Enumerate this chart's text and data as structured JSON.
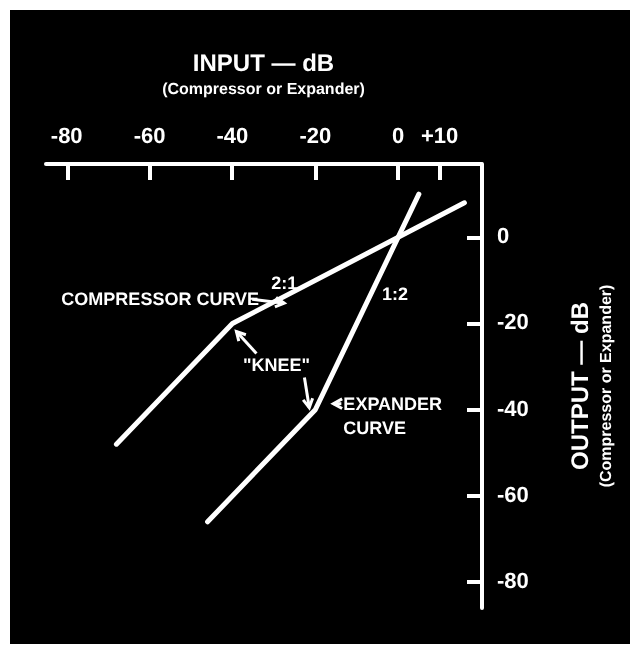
{
  "chart_data": {
    "type": "line",
    "xlabel": "INPUT — dB\n(Compressor or Expander)",
    "ylabel": "OUTPUT — dB\n(Compressor or Expander)",
    "xlim": [
      -85,
      20
    ],
    "xticks": [
      -80,
      -60,
      -40,
      -20,
      0,
      {
        "value": 10,
        "label": "+10"
      }
    ],
    "ylim": [
      -86,
      17
    ],
    "yticks": [
      0,
      -20,
      -40,
      -60,
      -80
    ],
    "series": [
      {
        "color": "#ffffff",
        "x": [
          -68,
          -40,
          16
        ],
        "values": [
          -48,
          -20,
          8
        ]
      },
      {
        "color": "#ffffff",
        "x": [
          -46,
          -20,
          5
        ],
        "values": [
          -66,
          -40,
          10
        ]
      }
    ],
    "annotations": [
      {
        "text": "2:1",
        "x": -27.5,
        "y": -10.5
      },
      {
        "text": "COMPRESSOR CURVE",
        "x": -27.5,
        "y": -15.3
      },
      {
        "text": "\"KNEE\"",
        "x": -40,
        "y": -20
      },
      "1:2",
      {
        "text": "EXPANDER CURVE",
        "x": -16.6,
        "y": -38.6
      }
    ],
    "grid": false,
    "marker": "none",
    "line_style": "solid"
  }
}
